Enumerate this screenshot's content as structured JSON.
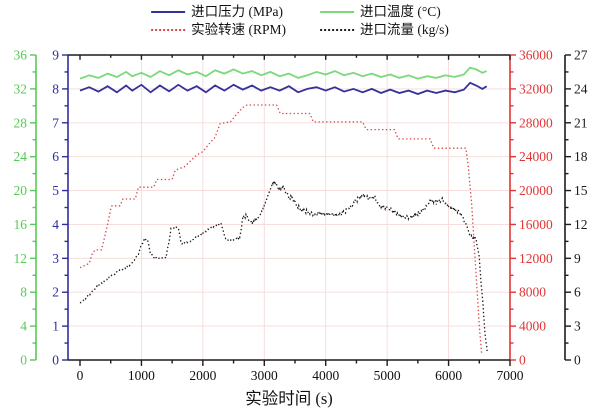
{
  "legend": {
    "items": [
      {
        "label": "进口压力 (MPa)",
        "color": "#32329b",
        "style": "solid"
      },
      {
        "label": "进口温度 (°C)",
        "color": "#7bd87b",
        "style": "dotted_solid_green",
        "marker": "solid"
      },
      {
        "label": "实验转速 (RPM)",
        "color": "#d84848",
        "style": "dotted",
        "marker": "dotted"
      },
      {
        "label": "进口流量 (kg/s)",
        "color": "#1c1c1c",
        "style": "dotted",
        "marker": "dotted"
      }
    ]
  },
  "chart_data": {
    "type": "line",
    "title": "",
    "xlabel": "实验时间 (s)",
    "grid": true,
    "grid_color": "#f5dada",
    "x_axis": {
      "min": 0,
      "max": 7000,
      "tick_step": 1000,
      "minor_step": 500,
      "color": "#1c1c1c"
    },
    "y_axes": {
      "pressure": {
        "label": "进口压力 (MPa)",
        "min": 0,
        "max": 9,
        "tick_step": 1,
        "color": "#2e2e9d",
        "position": "left-inner"
      },
      "temperature": {
        "label": "进口温度 (°C)",
        "min": 0,
        "max": 36,
        "tick_step": 4,
        "color": "#57c957",
        "position": "left-outer"
      },
      "rpm": {
        "label": "实验转速 (RPM)",
        "min": 0,
        "max": 36000,
        "tick_step": 4000,
        "color": "#e03636",
        "position": "right-inner"
      },
      "flow": {
        "label": "进口流量 (kg/s)",
        "min": 0,
        "max": 27,
        "tick_step": 3,
        "color": "#1c1c1c",
        "position": "right-outer"
      }
    },
    "series": [
      {
        "name": "进口压力 (MPa)",
        "axis": "pressure",
        "color": "#32329b",
        "style": "solid",
        "width": 1.8,
        "points": [
          [
            0,
            7.95
          ],
          [
            150,
            8.05
          ],
          [
            300,
            7.92
          ],
          [
            450,
            8.08
          ],
          [
            600,
            7.9
          ],
          [
            750,
            8.1
          ],
          [
            850,
            7.95
          ],
          [
            1000,
            8.12
          ],
          [
            1150,
            7.9
          ],
          [
            1300,
            8.1
          ],
          [
            1450,
            7.93
          ],
          [
            1600,
            8.12
          ],
          [
            1750,
            7.95
          ],
          [
            1900,
            8.08
          ],
          [
            2050,
            7.9
          ],
          [
            2200,
            8.1
          ],
          [
            2350,
            7.95
          ],
          [
            2500,
            8.12
          ],
          [
            2650,
            7.98
          ],
          [
            2800,
            8.1
          ],
          [
            2950,
            7.95
          ],
          [
            3100,
            8.05
          ],
          [
            3250,
            7.95
          ],
          [
            3400,
            8.08
          ],
          [
            3550,
            7.9
          ],
          [
            3700,
            8.0
          ],
          [
            3850,
            8.05
          ],
          [
            4000,
            7.95
          ],
          [
            4150,
            8.05
          ],
          [
            4300,
            7.92
          ],
          [
            4450,
            8.0
          ],
          [
            4600,
            7.9
          ],
          [
            4750,
            8.0
          ],
          [
            4900,
            7.88
          ],
          [
            5050,
            7.98
          ],
          [
            5200,
            7.88
          ],
          [
            5350,
            7.95
          ],
          [
            5500,
            7.85
          ],
          [
            5650,
            7.95
          ],
          [
            5800,
            7.88
          ],
          [
            5950,
            7.95
          ],
          [
            6100,
            7.9
          ],
          [
            6250,
            7.98
          ],
          [
            6350,
            8.18
          ],
          [
            6450,
            8.1
          ],
          [
            6550,
            8.0
          ],
          [
            6620,
            8.08
          ]
        ]
      },
      {
        "name": "进口温度 (°C)",
        "axis": "temperature",
        "color": "#7bd87b",
        "style": "solid",
        "width": 1.8,
        "points": [
          [
            0,
            33.2
          ],
          [
            150,
            33.6
          ],
          [
            300,
            33.3
          ],
          [
            450,
            33.8
          ],
          [
            600,
            33.4
          ],
          [
            750,
            34.0
          ],
          [
            850,
            33.5
          ],
          [
            1000,
            33.9
          ],
          [
            1150,
            33.4
          ],
          [
            1300,
            34.1
          ],
          [
            1450,
            33.6
          ],
          [
            1600,
            34.2
          ],
          [
            1750,
            33.7
          ],
          [
            1900,
            34.0
          ],
          [
            2050,
            33.5
          ],
          [
            2200,
            34.2
          ],
          [
            2350,
            33.8
          ],
          [
            2500,
            34.3
          ],
          [
            2650,
            33.8
          ],
          [
            2800,
            34.1
          ],
          [
            2950,
            33.6
          ],
          [
            3100,
            34.0
          ],
          [
            3250,
            33.5
          ],
          [
            3400,
            33.8
          ],
          [
            3550,
            33.3
          ],
          [
            3700,
            33.6
          ],
          [
            3850,
            34.0
          ],
          [
            4000,
            33.7
          ],
          [
            4150,
            34.1
          ],
          [
            4300,
            33.6
          ],
          [
            4450,
            33.9
          ],
          [
            4600,
            33.5
          ],
          [
            4750,
            33.8
          ],
          [
            4900,
            33.4
          ],
          [
            5050,
            33.7
          ],
          [
            5200,
            33.3
          ],
          [
            5350,
            33.6
          ],
          [
            5500,
            33.2
          ],
          [
            5650,
            33.5
          ],
          [
            5800,
            33.3
          ],
          [
            5950,
            33.6
          ],
          [
            6100,
            33.4
          ],
          [
            6250,
            33.7
          ],
          [
            6350,
            34.5
          ],
          [
            6450,
            34.3
          ],
          [
            6550,
            33.9
          ],
          [
            6620,
            34.1
          ]
        ]
      },
      {
        "name": "实验转速 (RPM)",
        "axis": "rpm",
        "color": "#d84848",
        "style": "dotted",
        "width": 1.3,
        "points": [
          [
            0,
            10900
          ],
          [
            150,
            11400
          ],
          [
            200,
            12600
          ],
          [
            250,
            13000
          ],
          [
            350,
            13000
          ],
          [
            400,
            14500
          ],
          [
            450,
            16000
          ],
          [
            500,
            17800
          ],
          [
            520,
            18200
          ],
          [
            650,
            18200
          ],
          [
            700,
            19000
          ],
          [
            900,
            19000
          ],
          [
            950,
            20400
          ],
          [
            1200,
            20400
          ],
          [
            1250,
            21300
          ],
          [
            1500,
            21300
          ],
          [
            1550,
            22400
          ],
          [
            1700,
            22800
          ],
          [
            1800,
            23500
          ],
          [
            1900,
            24200
          ],
          [
            2000,
            24600
          ],
          [
            2100,
            25500
          ],
          [
            2200,
            26300
          ],
          [
            2280,
            27900
          ],
          [
            2450,
            28100
          ],
          [
            2550,
            29000
          ],
          [
            2650,
            29800
          ],
          [
            2720,
            30100
          ],
          [
            3200,
            30100
          ],
          [
            3260,
            29100
          ],
          [
            3740,
            29100
          ],
          [
            3800,
            28100
          ],
          [
            4600,
            28100
          ],
          [
            4660,
            27200
          ],
          [
            5120,
            27200
          ],
          [
            5180,
            26100
          ],
          [
            5700,
            26100
          ],
          [
            5760,
            25000
          ],
          [
            6280,
            25000
          ],
          [
            6320,
            23000
          ],
          [
            6380,
            18000
          ],
          [
            6440,
            11000
          ],
          [
            6500,
            4000
          ],
          [
            6540,
            700
          ]
        ]
      },
      {
        "name": "进口流量 (kg/s)",
        "axis": "flow",
        "color": "#1c1c1c",
        "style": "dotted",
        "width": 1.3,
        "noise": 0.16,
        "points": [
          [
            0,
            5.0
          ],
          [
            150,
            5.8
          ],
          [
            300,
            6.6
          ],
          [
            450,
            7.2
          ],
          [
            600,
            7.8
          ],
          [
            750,
            8.2
          ],
          [
            850,
            8.6
          ],
          [
            950,
            9.4
          ],
          [
            1000,
            10.2
          ],
          [
            1050,
            10.7
          ],
          [
            1100,
            10.6
          ],
          [
            1150,
            9.4
          ],
          [
            1200,
            9.1
          ],
          [
            1300,
            9.0
          ],
          [
            1400,
            9.1
          ],
          [
            1450,
            10.5
          ],
          [
            1480,
            11.6
          ],
          [
            1550,
            11.8
          ],
          [
            1600,
            11.7
          ],
          [
            1650,
            10.3
          ],
          [
            1750,
            10.4
          ],
          [
            1850,
            10.7
          ],
          [
            1950,
            11.0
          ],
          [
            2050,
            11.4
          ],
          [
            2150,
            11.8
          ],
          [
            2250,
            12.0
          ],
          [
            2300,
            12.1
          ],
          [
            2350,
            11.0
          ],
          [
            2400,
            10.6
          ],
          [
            2500,
            10.7
          ],
          [
            2600,
            10.8
          ],
          [
            2650,
            12.6
          ],
          [
            2700,
            12.8
          ],
          [
            2750,
            12.4
          ],
          [
            2800,
            12.1
          ],
          [
            2850,
            12.3
          ],
          [
            2900,
            12.6
          ],
          [
            2950,
            13.0
          ],
          [
            3000,
            13.6
          ],
          [
            3050,
            14.4
          ],
          [
            3100,
            15.2
          ],
          [
            3150,
            15.8
          ],
          [
            3200,
            15.5
          ],
          [
            3250,
            15.1
          ],
          [
            3300,
            15.4
          ],
          [
            3350,
            14.9
          ],
          [
            3400,
            14.4
          ],
          [
            3450,
            14.4
          ],
          [
            3500,
            13.9
          ],
          [
            3550,
            13.5
          ],
          [
            3600,
            13.3
          ],
          [
            3700,
            13.1
          ],
          [
            3800,
            12.9
          ],
          [
            3900,
            13.0
          ],
          [
            4000,
            12.9
          ],
          [
            4100,
            12.9
          ],
          [
            4200,
            12.8
          ],
          [
            4300,
            13.1
          ],
          [
            4400,
            13.5
          ],
          [
            4500,
            14.2
          ],
          [
            4600,
            14.6
          ],
          [
            4700,
            14.3
          ],
          [
            4800,
            14.4
          ],
          [
            4850,
            13.8
          ],
          [
            4900,
            13.6
          ],
          [
            5000,
            13.5
          ],
          [
            5100,
            13.2
          ],
          [
            5200,
            12.8
          ],
          [
            5300,
            12.6
          ],
          [
            5400,
            12.7
          ],
          [
            5500,
            12.9
          ],
          [
            5600,
            13.3
          ],
          [
            5700,
            14.1
          ],
          [
            5800,
            14.0
          ],
          [
            5900,
            14.2
          ],
          [
            6000,
            13.6
          ],
          [
            6100,
            13.3
          ],
          [
            6200,
            13.0
          ],
          [
            6300,
            11.8
          ],
          [
            6350,
            11.0
          ],
          [
            6400,
            10.8
          ],
          [
            6450,
            10.7
          ],
          [
            6500,
            9.0
          ],
          [
            6550,
            5.5
          ],
          [
            6600,
            2.0
          ],
          [
            6630,
            0.6
          ]
        ]
      }
    ]
  }
}
